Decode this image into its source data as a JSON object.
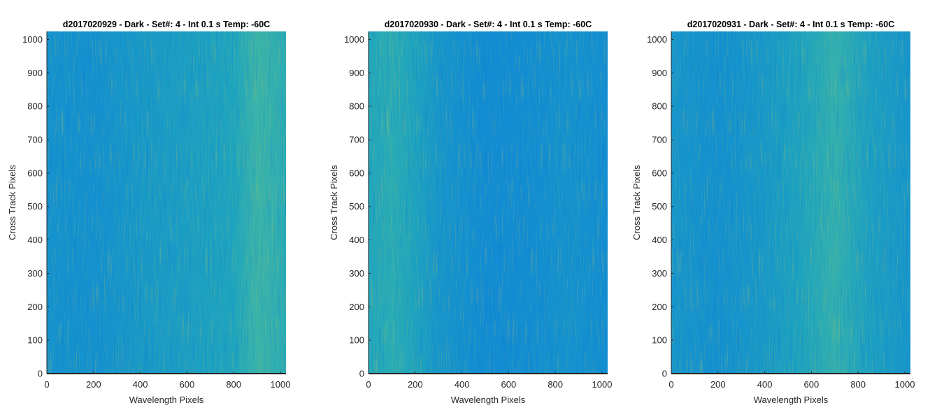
{
  "chart_data": [
    {
      "type": "heatmap",
      "title": "d2017020929 - Dark - Set#: 4 - Int 0.1 s Temp: -60C",
      "xlabel": "Wavelength Pixels",
      "ylabel": "Cross Track Pixels",
      "xlim": [
        0,
        1024
      ],
      "ylim": [
        0,
        1024
      ],
      "xticks": [
        0,
        200,
        400,
        600,
        800,
        1000
      ],
      "yticks": [
        0,
        100,
        200,
        300,
        400,
        500,
        600,
        700,
        800,
        900,
        1000
      ],
      "colormap": "parula",
      "column_profile": [
        {
          "x": 0,
          "v": 0.34
        },
        {
          "x": 200,
          "v": 0.33
        },
        {
          "x": 400,
          "v": 0.38
        },
        {
          "x": 600,
          "v": 0.41
        },
        {
          "x": 800,
          "v": 0.45
        },
        {
          "x": 900,
          "v": 0.56
        },
        {
          "x": 1024,
          "v": 0.5
        }
      ]
    },
    {
      "type": "heatmap",
      "title": "d2017020930 - Dark - Set#: 4 - Int 0.1 s Temp: -60C",
      "xlabel": "Wavelength Pixels",
      "ylabel": "Cross Track Pixels",
      "xlim": [
        0,
        1024
      ],
      "ylim": [
        0,
        1024
      ],
      "xticks": [
        0,
        200,
        400,
        600,
        800,
        1000
      ],
      "yticks": [
        0,
        100,
        200,
        300,
        400,
        500,
        600,
        700,
        800,
        900,
        1000
      ],
      "colormap": "parula",
      "column_profile": [
        {
          "x": 0,
          "v": 0.46
        },
        {
          "x": 100,
          "v": 0.5
        },
        {
          "x": 200,
          "v": 0.44
        },
        {
          "x": 300,
          "v": 0.36
        },
        {
          "x": 500,
          "v": 0.3
        },
        {
          "x": 700,
          "v": 0.31
        },
        {
          "x": 850,
          "v": 0.34
        },
        {
          "x": 1024,
          "v": 0.31
        }
      ]
    },
    {
      "type": "heatmap",
      "title": "d2017020931 - Dark - Set#: 4 - Int 0.1 s Temp: -60C",
      "xlabel": "Wavelength Pixels",
      "ylabel": "Cross Track Pixels",
      "xlim": [
        0,
        1024
      ],
      "ylim": [
        0,
        1024
      ],
      "xticks": [
        0,
        200,
        400,
        600,
        800,
        1000
      ],
      "yticks": [
        0,
        100,
        200,
        300,
        400,
        500,
        600,
        700,
        800,
        900,
        1000
      ],
      "colormap": "parula",
      "column_profile": [
        {
          "x": 0,
          "v": 0.36
        },
        {
          "x": 200,
          "v": 0.33
        },
        {
          "x": 400,
          "v": 0.38
        },
        {
          "x": 550,
          "v": 0.44
        },
        {
          "x": 700,
          "v": 0.53
        },
        {
          "x": 850,
          "v": 0.42
        },
        {
          "x": 1024,
          "v": 0.36
        }
      ]
    }
  ]
}
